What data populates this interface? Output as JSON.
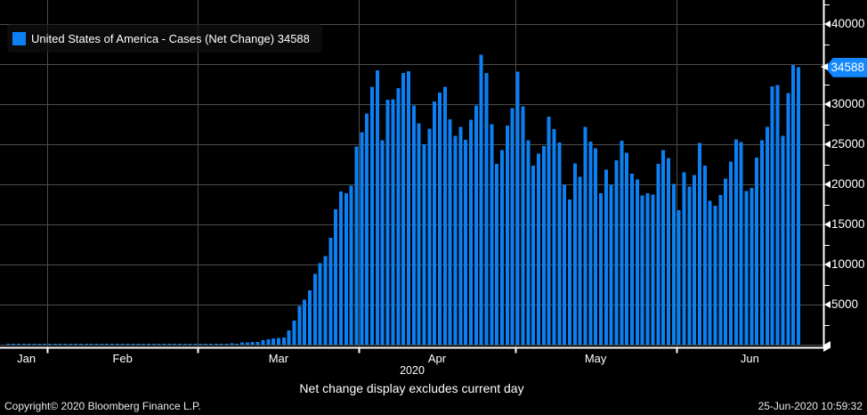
{
  "legend": {
    "label": "United States of America - Cases (Net Change) 34588",
    "swatch_icon": "blue-square"
  },
  "subtitle": "Net change display excludes current day",
  "footer": {
    "copyright": "Copyright© 2020 Bloomberg Finance L.P.",
    "timestamp": "25-Jun-2020 10:59:32"
  },
  "last_value_tag": {
    "text": "34588",
    "value": 34588
  },
  "x_axis": {
    "month_labels": [
      "Jan",
      "Feb",
      "Mar",
      "Apr",
      "May",
      "Jun"
    ],
    "year_label": "2020"
  },
  "y_axis": {
    "visible_major_labels": [
      40000,
      30000,
      25000,
      20000,
      15000,
      10000,
      5000
    ],
    "major_step": 5000,
    "minor_step": 2500,
    "max_shown": 42500
  },
  "colors": {
    "background": "#000000",
    "bar": "#0c7ff2",
    "tag_bg": "#1287ff",
    "grid": "#4d4d4d",
    "axis": "#ffffff",
    "text": "#ffffff"
  },
  "chart_data": {
    "type": "bar",
    "title": "United States of America - Cases (Net Change)",
    "subtitle": "Net change display excludes current day",
    "xlabel": "2020 (daily, Jan–Jun)",
    "ylabel": "Cases (Net Change)",
    "start_date": "2020-01-24",
    "end_date": "2020-06-24",
    "frequency": "daily",
    "last_value": 34588,
    "ylim": [
      0,
      42500
    ],
    "grid": true,
    "legend_position": "top-left",
    "values": [
      1,
      1,
      3,
      0,
      0,
      1,
      0,
      3,
      0,
      0,
      0,
      0,
      2,
      0,
      0,
      0,
      0,
      0,
      1,
      1,
      1,
      0,
      0,
      0,
      0,
      1,
      0,
      0,
      0,
      19,
      0,
      18,
      0,
      18,
      6,
      1,
      7,
      24,
      20,
      31,
      74,
      108,
      129,
      163,
      119,
      298,
      290,
      307,
      336,
      554,
      678,
      777,
      823,
      887,
      1766,
      2988,
      4835,
      5632,
      6774,
      8821,
      10189,
      11075,
      13355,
      16916,
      19117,
      18864,
      19821,
      24742,
      26473,
      28819,
      32149,
      34196,
      25523,
      30561,
      30613,
      31993,
      33902,
      34123,
      29861,
      27620,
      25023,
      26922,
      30317,
      31451,
      32165,
      28123,
      26071,
      27145,
      25555,
      28044,
      29807,
      36188,
      33882,
      27515,
      22541,
      24294,
      27312,
      29517,
      34033,
      29744,
      25509,
      22335,
      23841,
      24788,
      28420,
      26906,
      25212,
      19963,
      18117,
      22602,
      20928,
      27143,
      25342,
      24487,
      18873,
      21841,
      19970,
      23006,
      25434,
      23941,
      21326,
      20622,
      18611,
      18910,
      18721,
      22577,
      24266,
      23290,
      20058,
      16766,
      21494,
      19699,
      21140,
      25176,
      22317,
      17919,
      17336,
      18679,
      20720,
      22833,
      25632,
      25306,
      19143,
      19543,
      23353,
      25513,
      27187,
      32218,
      32411,
      26079,
      31402,
      34900,
      34588
    ]
  }
}
